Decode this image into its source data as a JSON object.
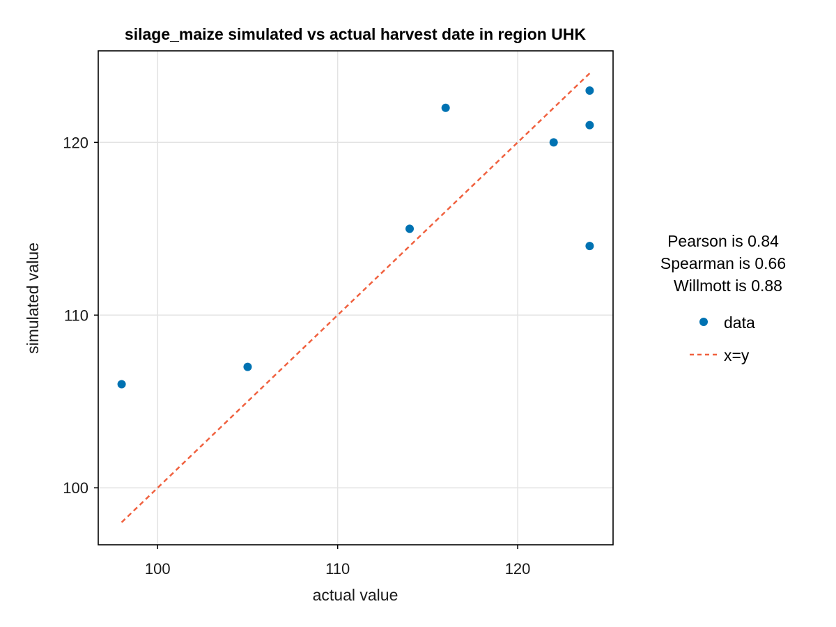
{
  "chart_data": {
    "type": "scatter",
    "title": "silage_maize simulated vs actual harvest date in region UHK",
    "xlabel": "actual value",
    "ylabel": "simulated value",
    "xlim": [
      96.7,
      125.3
    ],
    "ylim": [
      96.7,
      125.3
    ],
    "xticks": [
      100,
      110,
      120
    ],
    "yticks": [
      100,
      110,
      120
    ],
    "grid": true,
    "series": [
      {
        "name": "data",
        "kind": "scatter",
        "color": "#0072b2",
        "points": [
          {
            "x": 98,
            "y": 106
          },
          {
            "x": 105,
            "y": 107
          },
          {
            "x": 114,
            "y": 115
          },
          {
            "x": 116,
            "y": 122
          },
          {
            "x": 122,
            "y": 120
          },
          {
            "x": 124,
            "y": 123
          },
          {
            "x": 124,
            "y": 121
          },
          {
            "x": 124,
            "y": 114
          }
        ]
      },
      {
        "name": "x=y",
        "kind": "line",
        "style": "dashed",
        "color": "#f0613f",
        "points": [
          {
            "x": 98,
            "y": 98
          },
          {
            "x": 124,
            "y": 124
          }
        ]
      }
    ],
    "stats": [
      "Pearson is 0.84",
      "Spearman is 0.66",
      "Willmott is  0.88"
    ],
    "legend_position": "right"
  }
}
